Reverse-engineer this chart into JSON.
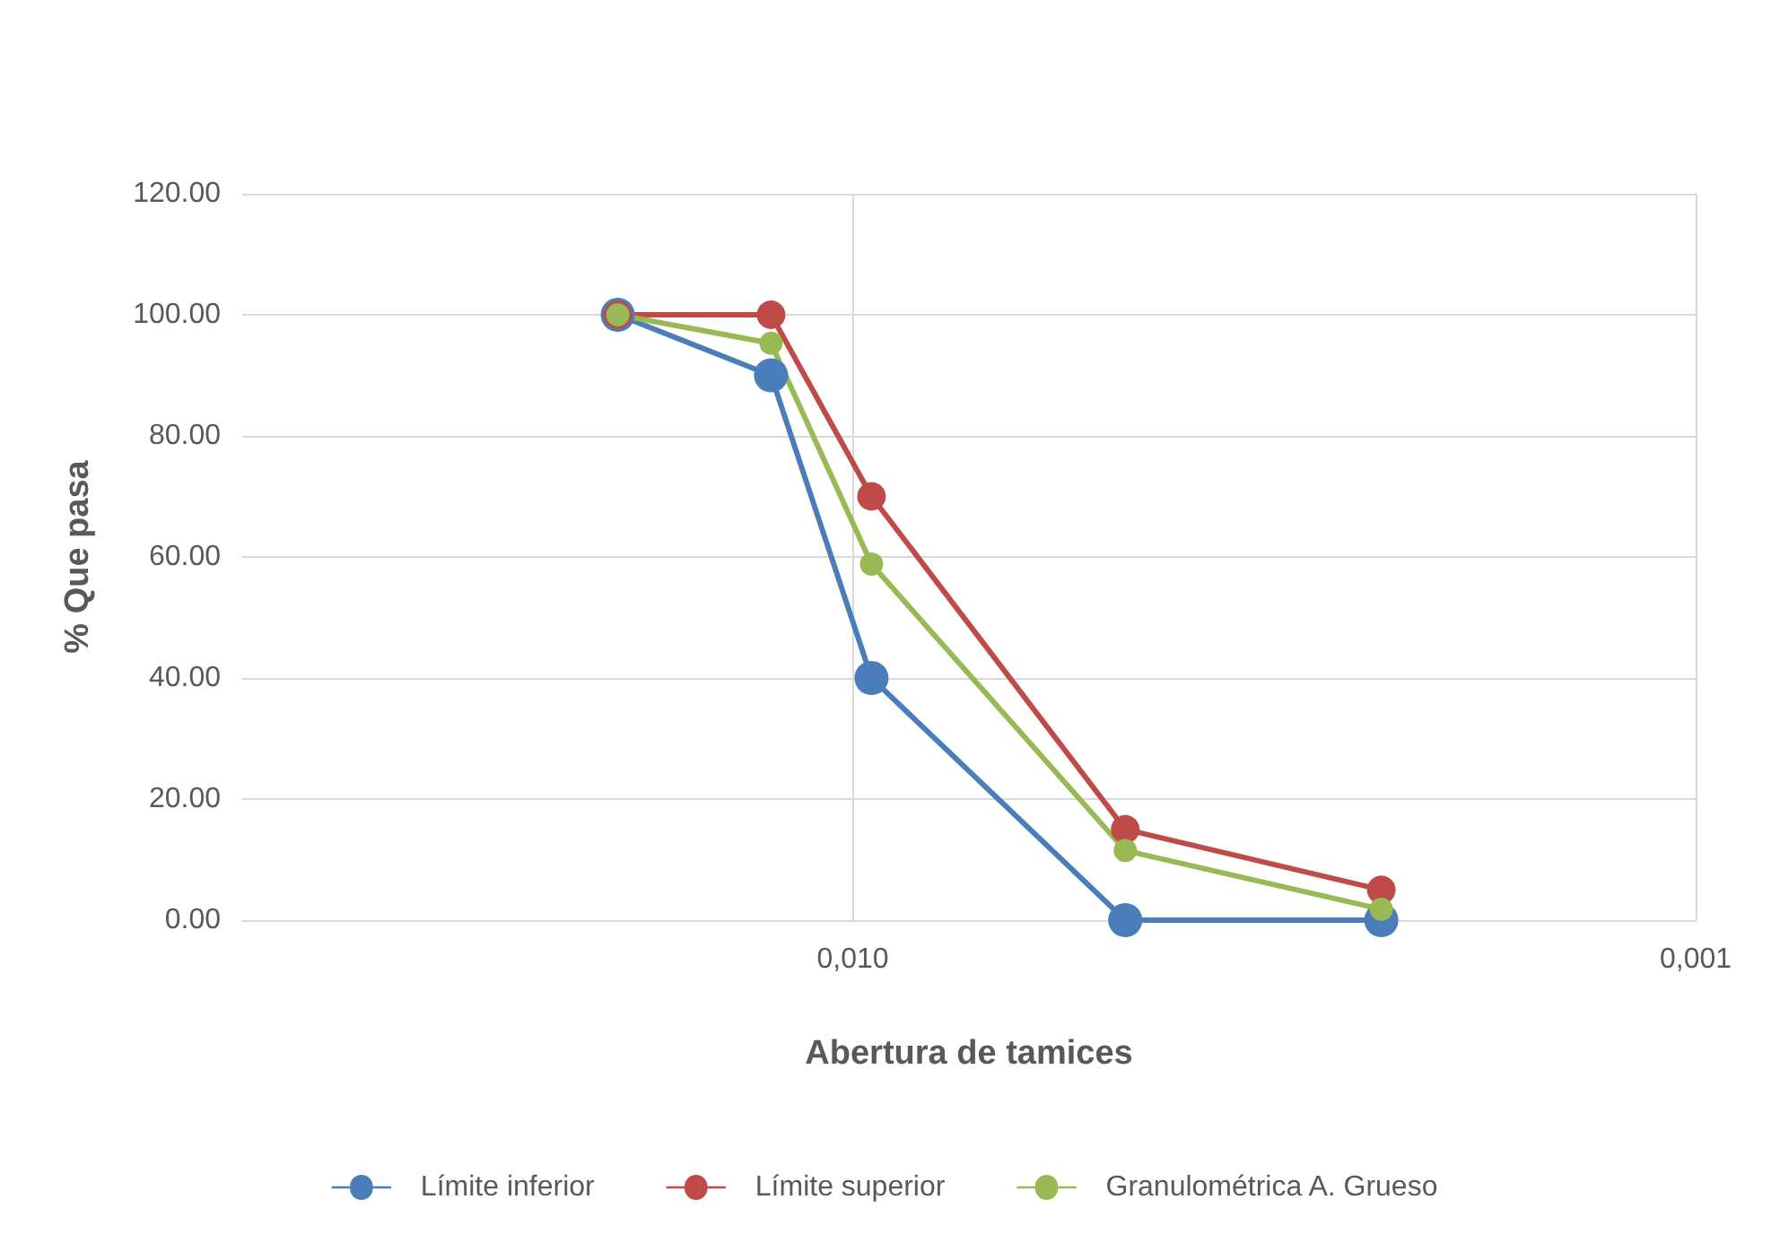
{
  "chart_data": {
    "type": "line",
    "xlabel": "Abertura de tamices",
    "ylabel": "% Que pasa",
    "log": "x",
    "x": [
      0.019,
      0.0125,
      0.0095,
      0.00475,
      0.00236
    ],
    "xlim": [
      0.053,
      0.001
    ],
    "xticks": [
      {
        "value": 0.01,
        "label": "0,010"
      },
      {
        "value": 0.001,
        "label": "0,001"
      }
    ],
    "ylim": [
      0,
      120
    ],
    "yticks": [
      {
        "value": 0,
        "label": "0.00"
      },
      {
        "value": 20,
        "label": "20.00"
      },
      {
        "value": 40,
        "label": "40.00"
      },
      {
        "value": 60,
        "label": "60.00"
      },
      {
        "value": 80,
        "label": "80.00"
      },
      {
        "value": 100,
        "label": "100.00"
      },
      {
        "value": 120,
        "label": "120.00"
      }
    ],
    "series": [
      {
        "name": "Límite inferior",
        "color": "#4a7ebb",
        "values": [
          100,
          90,
          40,
          0,
          0
        ]
      },
      {
        "name": "Límite superior",
        "color": "#be4b48",
        "values": [
          100,
          100,
          70,
          15,
          5
        ]
      },
      {
        "name": "Granulométrica A. Grueso",
        "color": "#98b954",
        "values": [
          100,
          95.3,
          58.8,
          11.5,
          1.8
        ]
      }
    ],
    "grid": true,
    "legend": "bottom",
    "marker": "circle",
    "line_style": "solid"
  }
}
